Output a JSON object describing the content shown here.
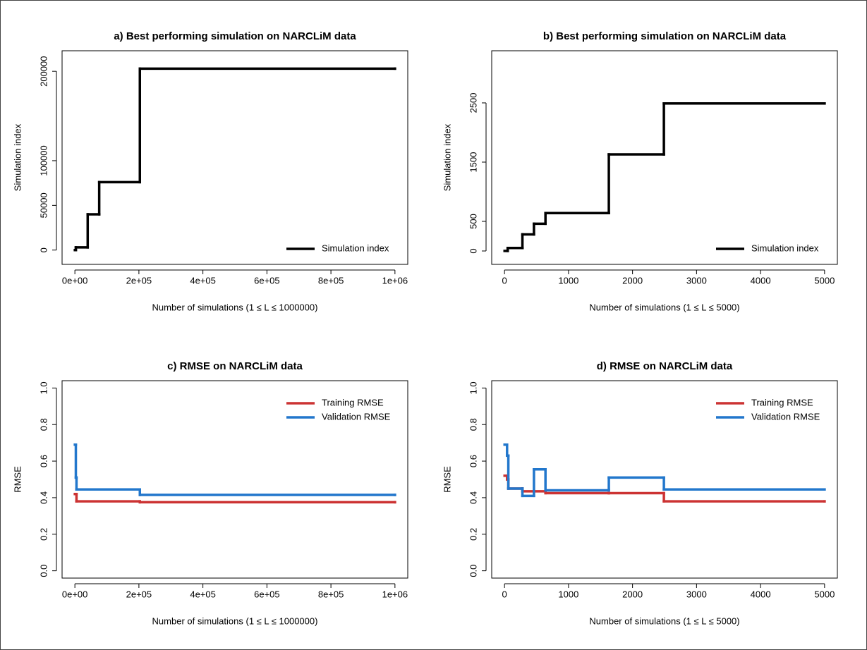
{
  "chart_data": [
    {
      "type": "step",
      "title": "a) Best performing simulation on NARCLiM data",
      "x_label": "Number of simulations (1 ≤ L ≤ 1000000)",
      "y_label": "Simulation index",
      "x": [
        1,
        3000,
        40000,
        76000,
        203000,
        1000000
      ],
      "series": [
        {
          "name": "Simulation index",
          "color": "#000000",
          "values": [
            1,
            3000,
            40000,
            76000,
            203000,
            203000
          ]
        }
      ],
      "xlim": [
        -40000,
        1040000
      ],
      "xticks": [
        {
          "value": 0,
          "label": "0e+00"
        },
        {
          "value": 200000,
          "label": "2e+05"
        },
        {
          "value": 400000,
          "label": "4e+05"
        },
        {
          "value": 600000,
          "label": "6e+05"
        },
        {
          "value": 800000,
          "label": "8e+05"
        },
        {
          "value": 1000000,
          "label": "1e+06"
        }
      ],
      "ylim": [
        -16000,
        223000
      ],
      "yticks": [
        0,
        50000,
        100000,
        200000
      ],
      "legend": "bottom-right"
    },
    {
      "type": "step",
      "title": "b) Best performing simulation on NARCLiM data",
      "x_label": "Number of simulations (1 ≤ L ≤ 5000)",
      "y_label": "Simulation index",
      "x": [
        1,
        50,
        280,
        460,
        640,
        1630,
        2490,
        5000
      ],
      "series": [
        {
          "name": "Simulation index",
          "color": "#000000",
          "values": [
            1,
            50,
            280,
            460,
            640,
            1630,
            2490,
            2490
          ]
        }
      ],
      "xlim": [
        -200,
        5200
      ],
      "xticks": [
        0,
        1000,
        2000,
        3000,
        4000,
        5000
      ],
      "ylim": [
        -226,
        3380
      ],
      "yticks": [
        0,
        500,
        1500,
        2500
      ],
      "legend": "bottom-right"
    },
    {
      "type": "step",
      "title": "c) RMSE on NARCLiM data",
      "x_label": "Number of simulations (1 ≤ L ≤ 1000000)",
      "y_label": "RMSE",
      "x": [
        1,
        3000,
        5000,
        203000,
        1000000
      ],
      "series": [
        {
          "name": "Training RMSE",
          "color": "#cc3333",
          "values": [
            0.42,
            0.42,
            0.38,
            0.375,
            0.375
          ]
        },
        {
          "name": "Validation RMSE",
          "color": "#2277cc",
          "values": [
            0.69,
            0.51,
            0.445,
            0.415,
            0.415
          ]
        }
      ],
      "xlim": [
        -40000,
        1040000
      ],
      "xticks": [
        {
          "value": 0,
          "label": "0e+00"
        },
        {
          "value": 200000,
          "label": "2e+05"
        },
        {
          "value": 400000,
          "label": "4e+05"
        },
        {
          "value": 600000,
          "label": "6e+05"
        },
        {
          "value": 800000,
          "label": "8e+05"
        },
        {
          "value": 1000000,
          "label": "1e+06"
        }
      ],
      "ylim": [
        -0.04,
        1.04
      ],
      "yticks": [
        {
          "value": 0,
          "label": "0.0"
        },
        0.2,
        0.4,
        0.6,
        0.8,
        {
          "value": 1,
          "label": "1.0"
        }
      ],
      "legend": "top-right"
    },
    {
      "type": "step",
      "title": "d) RMSE on NARCLiM data",
      "x_label": "Number of simulations (1 ≤ L ≤ 5000)",
      "y_label": "RMSE",
      "x": [
        1,
        40,
        60,
        280,
        460,
        640,
        1630,
        2490,
        5000
      ],
      "series": [
        {
          "name": "Training RMSE",
          "color": "#cc3333",
          "values": [
            0.52,
            0.5,
            0.45,
            0.435,
            0.435,
            0.425,
            0.425,
            0.38,
            0.38
          ]
        },
        {
          "name": "Validation RMSE",
          "color": "#2277cc",
          "values": [
            0.69,
            0.63,
            0.45,
            0.41,
            0.555,
            0.44,
            0.51,
            0.445,
            0.445
          ]
        }
      ],
      "xlim": [
        -200,
        5200
      ],
      "xticks": [
        0,
        1000,
        2000,
        3000,
        4000,
        5000
      ],
      "ylim": [
        -0.04,
        1.04
      ],
      "yticks": [
        {
          "value": 0,
          "label": "0.0"
        },
        0.2,
        0.4,
        0.6,
        0.8,
        {
          "value": 1,
          "label": "1.0"
        }
      ],
      "legend": "top-right"
    }
  ]
}
